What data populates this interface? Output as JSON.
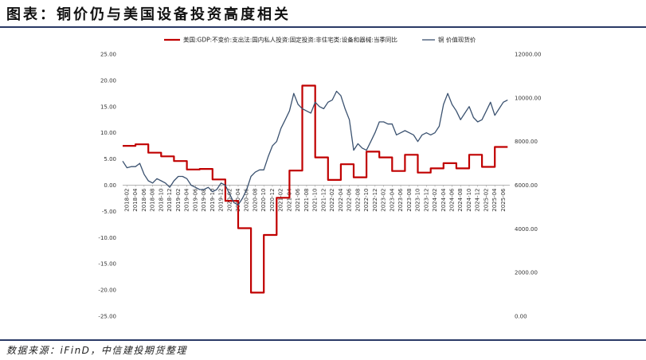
{
  "header": {
    "title": "图表：铜价仍与美国设备投资高度相关"
  },
  "footer": {
    "source": "数据来源：iFinD，中信建投期货整理"
  },
  "chart_data": {
    "type": "line",
    "title": "图表：铜价仍与美国设备投资高度相关",
    "legend_placement": "top",
    "grid": false,
    "y_left": {
      "min": -25,
      "max": 25,
      "ticks": [
        25,
        20,
        15,
        10,
        5,
        0,
        -5,
        -10,
        -15,
        -20,
        -25
      ],
      "tick_labels": [
        "25.00",
        "20.00",
        "15.00",
        "10.00",
        "5.00",
        "0.00",
        "-5.00",
        "-10.00",
        "-15.00",
        "-20.00",
        "-25.00"
      ]
    },
    "y_right": {
      "min": 0,
      "max": 12000,
      "ticks": [
        12000,
        10000,
        8000,
        6000,
        4000,
        2000,
        0
      ],
      "tick_labels": [
        "12000.00",
        "10000.00",
        "8000.00",
        "6000.00",
        "4000.00",
        "2000.00",
        "0.00"
      ]
    },
    "x_tick_labels": [
      "2018-02",
      "2018-04",
      "2018-06",
      "2018-08",
      "2018-10",
      "2018-12",
      "2019-02",
      "2019-04",
      "2019-06",
      "2019-08",
      "2019-10",
      "2019-12",
      "2020-02",
      "2020-04",
      "2020-06",
      "2020-08",
      "2020-10",
      "2020-12",
      "2021-02",
      "2021-04",
      "2021-06",
      "2021-08",
      "2021-10",
      "2021-12",
      "2022-02",
      "2022-04",
      "2022-06",
      "2022-08",
      "2022-10",
      "2022-12",
      "2023-02",
      "2023-04",
      "2023-06",
      "2023-08",
      "2023-10",
      "2023-12",
      "2024-02",
      "2024-04",
      "2024-06",
      "2024-08",
      "2024-10",
      "2024-12",
      "2025-02",
      "2025-04",
      "2025-06"
    ],
    "series": [
      {
        "name": "美国:GDP:不变价:支出法:国内私人投资:固定投资:非住宅类:设备和器械:当季同比",
        "axis": "left",
        "color": "#c00000",
        "style": "step",
        "points": [
          [
            "2018-01",
            7.5
          ],
          [
            "2018-04",
            7.8
          ],
          [
            "2018-07",
            6.2
          ],
          [
            "2018-10",
            5.5
          ],
          [
            "2019-01",
            4.6
          ],
          [
            "2019-04",
            3.0
          ],
          [
            "2019-07",
            3.1
          ],
          [
            "2019-10",
            1.1
          ],
          [
            "2020-01",
            -3.0
          ],
          [
            "2020-04",
            -8.2
          ],
          [
            "2020-07",
            -20.5
          ],
          [
            "2020-10",
            -9.5
          ],
          [
            "2021-01",
            -2.4
          ],
          [
            "2021-04",
            2.8
          ],
          [
            "2021-07",
            19.0
          ],
          [
            "2021-10",
            5.3
          ],
          [
            "2022-01",
            1.0
          ],
          [
            "2022-04",
            4.0
          ],
          [
            "2022-07",
            1.5
          ],
          [
            "2022-10",
            6.4
          ],
          [
            "2023-01",
            5.3
          ],
          [
            "2023-04",
            2.7
          ],
          [
            "2023-07",
            5.8
          ],
          [
            "2023-10",
            2.4
          ],
          [
            "2024-01",
            3.2
          ],
          [
            "2024-04",
            4.2
          ],
          [
            "2024-07",
            3.2
          ],
          [
            "2024-10",
            5.8
          ],
          [
            "2025-01",
            3.5
          ],
          [
            "2025-04",
            7.3
          ],
          [
            "2025-07",
            7.3
          ]
        ]
      },
      {
        "name": "铜 价值现货价",
        "axis": "right",
        "color": "#3b5270",
        "style": "line",
        "points": [
          [
            "2018-01",
            7100
          ],
          [
            "2018-02",
            6800
          ],
          [
            "2018-03",
            6850
          ],
          [
            "2018-04",
            6850
          ],
          [
            "2018-05",
            7000
          ],
          [
            "2018-06",
            6500
          ],
          [
            "2018-07",
            6200
          ],
          [
            "2018-08",
            6100
          ],
          [
            "2018-09",
            6300
          ],
          [
            "2018-10",
            6200
          ],
          [
            "2018-11",
            6100
          ],
          [
            "2018-12",
            5900
          ],
          [
            "2019-01",
            6200
          ],
          [
            "2019-02",
            6400
          ],
          [
            "2019-03",
            6400
          ],
          [
            "2019-04",
            6300
          ],
          [
            "2019-05",
            6000
          ],
          [
            "2019-06",
            5900
          ],
          [
            "2019-07",
            5800
          ],
          [
            "2019-08",
            5800
          ],
          [
            "2019-09",
            5900
          ],
          [
            "2019-10",
            5700
          ],
          [
            "2019-11",
            5800
          ],
          [
            "2019-12",
            6100
          ],
          [
            "2020-01",
            6000
          ],
          [
            "2020-02",
            5600
          ],
          [
            "2020-03",
            5200
          ],
          [
            "2020-04",
            5100
          ],
          [
            "2020-05",
            5400
          ],
          [
            "2020-06",
            5800
          ],
          [
            "2020-07",
            6400
          ],
          [
            "2020-08",
            6600
          ],
          [
            "2020-09",
            6700
          ],
          [
            "2020-10",
            6700
          ],
          [
            "2020-11",
            7300
          ],
          [
            "2020-12",
            7800
          ],
          [
            "2021-01",
            8000
          ],
          [
            "2021-02",
            8600
          ],
          [
            "2021-03",
            9000
          ],
          [
            "2021-04",
            9400
          ],
          [
            "2021-05",
            10200
          ],
          [
            "2021-06",
            9700
          ],
          [
            "2021-07",
            9500
          ],
          [
            "2021-08",
            9400
          ],
          [
            "2021-09",
            9300
          ],
          [
            "2021-10",
            9800
          ],
          [
            "2021-11",
            9600
          ],
          [
            "2021-12",
            9500
          ],
          [
            "2022-01",
            9800
          ],
          [
            "2022-02",
            9900
          ],
          [
            "2022-03",
            10300
          ],
          [
            "2022-04",
            10100
          ],
          [
            "2022-05",
            9500
          ],
          [
            "2022-06",
            9000
          ],
          [
            "2022-07",
            7600
          ],
          [
            "2022-08",
            7900
          ],
          [
            "2022-09",
            7700
          ],
          [
            "2022-10",
            7600
          ],
          [
            "2022-11",
            8000
          ],
          [
            "2022-12",
            8400
          ],
          [
            "2023-01",
            8900
          ],
          [
            "2023-02",
            8900
          ],
          [
            "2023-03",
            8800
          ],
          [
            "2023-04",
            8800
          ],
          [
            "2023-05",
            8300
          ],
          [
            "2023-06",
            8400
          ],
          [
            "2023-07",
            8500
          ],
          [
            "2023-08",
            8400
          ],
          [
            "2023-09",
            8300
          ],
          [
            "2023-10",
            8000
          ],
          [
            "2023-11",
            8300
          ],
          [
            "2023-12",
            8400
          ],
          [
            "2024-01",
            8300
          ],
          [
            "2024-02",
            8400
          ],
          [
            "2024-03",
            8700
          ],
          [
            "2024-04",
            9700
          ],
          [
            "2024-05",
            10200
          ],
          [
            "2024-06",
            9700
          ],
          [
            "2024-07",
            9400
          ],
          [
            "2024-08",
            9000
          ],
          [
            "2024-09",
            9300
          ],
          [
            "2024-10",
            9600
          ],
          [
            "2024-11",
            9100
          ],
          [
            "2024-12",
            8900
          ],
          [
            "2025-01",
            9000
          ],
          [
            "2025-02",
            9400
          ],
          [
            "2025-03",
            9800
          ],
          [
            "2025-04",
            9200
          ],
          [
            "2025-05",
            9500
          ],
          [
            "2025-06",
            9800
          ],
          [
            "2025-07",
            9900
          ]
        ]
      }
    ]
  }
}
